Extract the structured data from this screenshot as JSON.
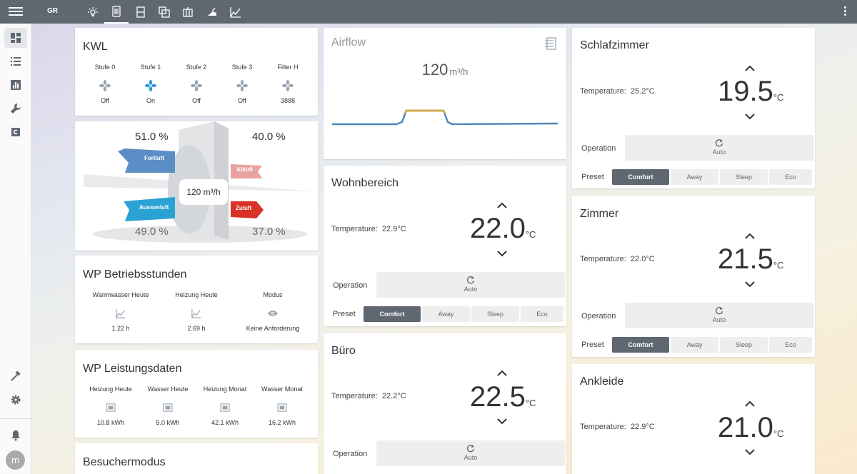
{
  "topbar": {
    "label": "GR",
    "tabs": [
      "lightbulb-icon",
      "thermostat-icon",
      "door-icon",
      "window-icon",
      "radiator-icon",
      "vacuum-icon",
      "chart-icon"
    ]
  },
  "kwl": {
    "title": "KWL",
    "items": [
      {
        "label": "Stufe 0",
        "value": "Off",
        "active": false
      },
      {
        "label": "Stufe 1",
        "value": "On",
        "active": true
      },
      {
        "label": "Stufe 2",
        "value": "Off",
        "active": false
      },
      {
        "label": "Stufe 3",
        "value": "Off",
        "active": false
      },
      {
        "label": "Filter H",
        "value": "3888",
        "active": false
      }
    ]
  },
  "diagram": {
    "fortluft_pct": "51.0 %",
    "abluft_pct": "40.0 %",
    "aussenluft_pct": "49.0 %",
    "zuluft_pct": "37.0 %",
    "flow": "120 m³/h",
    "fortluft": "Fortluft",
    "abluft": "Abluft",
    "aussenluft": "Aussenluft",
    "zuluft": "Zuluft"
  },
  "wp_stunden": {
    "title": "WP Betriebsstunden",
    "items": [
      {
        "label": "Warmwasser Heute",
        "value": "1.22 h",
        "icon": "chart-icon"
      },
      {
        "label": "Heizung Heute",
        "value": "2.69 h",
        "icon": "chart-icon"
      },
      {
        "label": "Modus",
        "value": "Keine Anforderung",
        "icon": "eye-icon"
      }
    ]
  },
  "wp_leistung": {
    "title": "WP Leistungsdaten",
    "items": [
      {
        "label": "Heizung Heute",
        "value": "10.8 kWh"
      },
      {
        "label": "Wasser Heute",
        "value": "5.0 kWh"
      },
      {
        "label": "Heizung Monat",
        "value": "42.1 kWh"
      },
      {
        "label": "Wasser Monat",
        "value": "16.2 kWh"
      }
    ]
  },
  "besucher": {
    "title": "Besuchermodus"
  },
  "airflow": {
    "title": "Airflow",
    "value": "120",
    "unit": "m³/h"
  },
  "thermostats": {
    "wohnbereich": {
      "title": "Wohnbereich",
      "temp_label": "Temperature:",
      "current": "22.9°C",
      "target": "22.0",
      "unit": "°C",
      "op_label": "Operation",
      "op_value": "Auto",
      "preset_label": "Preset",
      "presets": [
        "Comfort",
        "Away",
        "Sleep",
        "Eco"
      ],
      "active_preset": "Comfort"
    },
    "buero": {
      "title": "Büro",
      "temp_label": "Temperature:",
      "current": "22.2°C",
      "target": "22.5",
      "unit": "°C",
      "op_label": "Operation",
      "op_value": "Auto"
    },
    "schlafzimmer": {
      "title": "Schlafzimmer",
      "temp_label": "Temperature:",
      "current": "25.2°C",
      "target": "19.5",
      "unit": "°C",
      "op_label": "Operation",
      "op_value": "Auto",
      "preset_label": "Preset",
      "presets": [
        "Comfort",
        "Away",
        "Sleep",
        "Eco"
      ],
      "active_preset": "Comfort"
    },
    "zimmer": {
      "title": "Zimmer",
      "temp_label": "Temperature:",
      "current": "22.0°C",
      "target": "21.5",
      "unit": "°C",
      "op_label": "Operation",
      "op_value": "Auto",
      "preset_label": "Preset",
      "presets": [
        "Comfort",
        "Away",
        "Sleep",
        "Eco"
      ],
      "active_preset": "Comfort"
    },
    "ankleide": {
      "title": "Ankleide",
      "temp_label": "Temperature:",
      "current": "22.9°C",
      "target": "21.0",
      "unit": "°C"
    }
  },
  "sidebar": {
    "avatar": "m"
  },
  "colors": {
    "topbar": "#5f6770",
    "fan_active": "#2c9ad6",
    "fan_inactive": "#9aa6b2",
    "graph_line": "#4f86b8",
    "graph_high": "#d4aa40"
  }
}
